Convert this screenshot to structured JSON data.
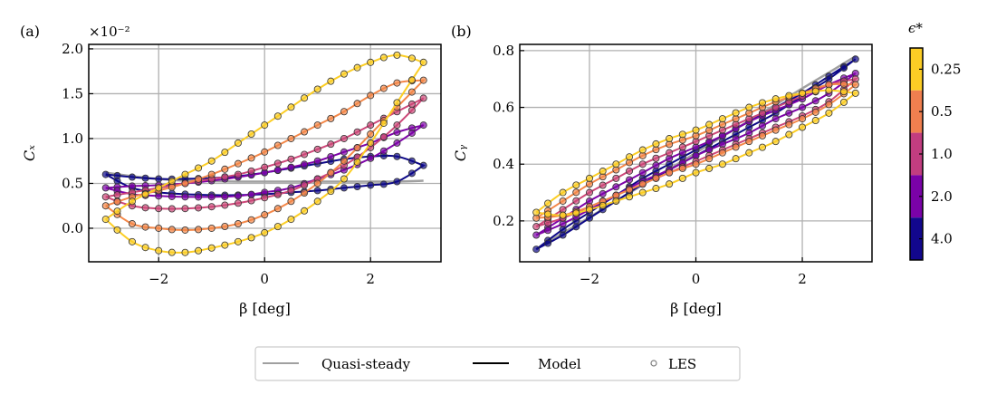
{
  "chart_data": [
    {
      "type": "line",
      "panel_label": "(a)",
      "offset_text": "×10⁻²",
      "xlabel": "β [deg]",
      "ylabel": "Cₓ",
      "xlim": [
        -3.32,
        3.33
      ],
      "ylim": [
        -0.374,
        2.05
      ],
      "xticks": [
        -2,
        0,
        2
      ],
      "xtick_labels": [
        "−2",
        "0",
        "2"
      ],
      "yticks": [
        0.0,
        0.5,
        1.0,
        1.5,
        2.0
      ],
      "ytick_labels": [
        "0.0",
        "0.5",
        "1.0",
        "1.5",
        "2.0"
      ],
      "grid": true,
      "beta": [
        -3,
        -2.5,
        -2,
        -1.5,
        -1,
        -0.5,
        0,
        0.5,
        1,
        1.5,
        2,
        2.5,
        3
      ],
      "quasi_steady": [
        0.62,
        0.58,
        0.55,
        0.53,
        0.525,
        0.52,
        0.52,
        0.52,
        0.52,
        0.52,
        0.52,
        0.52,
        0.53
      ],
      "series": [
        {
          "name": "4.0",
          "upper": [
            0.6,
            0.57,
            0.55,
            0.55,
            0.56,
            0.58,
            0.62,
            0.67,
            0.72,
            0.77,
            0.8,
            0.8,
            0.7
          ],
          "lower": [
            0.6,
            0.45,
            0.4,
            0.38,
            0.37,
            0.37,
            0.38,
            0.4,
            0.42,
            0.45,
            0.48,
            0.52,
            0.7
          ]
        },
        {
          "name": "2.0",
          "upper": [
            0.45,
            0.47,
            0.48,
            0.5,
            0.53,
            0.57,
            0.62,
            0.68,
            0.75,
            0.85,
            0.95,
            1.07,
            1.15
          ],
          "lower": [
            0.45,
            0.38,
            0.36,
            0.35,
            0.35,
            0.36,
            0.4,
            0.45,
            0.55,
            0.65,
            0.78,
            0.95,
            1.15
          ]
        },
        {
          "name": "1.0",
          "upper": [
            0.35,
            0.4,
            0.45,
            0.5,
            0.55,
            0.6,
            0.68,
            0.77,
            0.88,
            1.0,
            1.15,
            1.3,
            1.45
          ],
          "lower": [
            0.35,
            0.25,
            0.22,
            0.22,
            0.24,
            0.28,
            0.34,
            0.42,
            0.55,
            0.7,
            0.9,
            1.15,
            1.45
          ]
        },
        {
          "name": "0.5",
          "upper": [
            0.25,
            0.35,
            0.42,
            0.5,
            0.6,
            0.72,
            0.85,
            1.0,
            1.15,
            1.3,
            1.48,
            1.62,
            1.65
          ],
          "lower": [
            0.25,
            0.05,
            0.0,
            -0.02,
            0.0,
            0.05,
            0.15,
            0.3,
            0.5,
            0.75,
            1.05,
            1.35,
            1.65
          ]
        },
        {
          "name": "0.25",
          "upper": [
            0.1,
            0.3,
            0.45,
            0.6,
            0.75,
            0.95,
            1.15,
            1.35,
            1.55,
            1.72,
            1.85,
            1.93,
            1.85
          ],
          "lower": [
            0.1,
            -0.15,
            -0.25,
            -0.27,
            -0.22,
            -0.15,
            -0.05,
            0.1,
            0.3,
            0.55,
            0.95,
            1.4,
            1.85
          ]
        }
      ]
    },
    {
      "type": "line",
      "panel_label": "(b)",
      "xlabel": "β [deg]",
      "ylabel": "Cᵧ",
      "xlim": [
        -3.31,
        3.31
      ],
      "ylim": [
        0.056,
        0.822
      ],
      "xticks": [
        -2,
        0,
        2
      ],
      "xtick_labels": [
        "−2",
        "0",
        "2"
      ],
      "yticks": [
        0.2,
        0.4,
        0.6,
        0.8
      ],
      "ytick_labels": [
        "0.2",
        "0.4",
        "0.6",
        "0.8"
      ],
      "grid": true,
      "beta": [
        -3,
        -2.5,
        -2,
        -1.5,
        -1,
        -0.5,
        0,
        0.5,
        1,
        1.5,
        2,
        2.5,
        3
      ],
      "quasi_steady": [
        0.1,
        0.157,
        0.213,
        0.27,
        0.327,
        0.383,
        0.44,
        0.497,
        0.553,
        0.61,
        0.667,
        0.723,
        0.78
      ],
      "series": [
        {
          "name": "4.0",
          "upper": [
            0.1,
            0.17,
            0.23,
            0.29,
            0.35,
            0.4,
            0.45,
            0.5,
            0.55,
            0.6,
            0.65,
            0.71,
            0.77
          ],
          "lower": [
            0.1,
            0.15,
            0.21,
            0.27,
            0.33,
            0.38,
            0.43,
            0.48,
            0.53,
            0.58,
            0.64,
            0.7,
            0.77
          ]
        },
        {
          "name": "2.0",
          "upper": [
            0.15,
            0.21,
            0.27,
            0.32,
            0.37,
            0.42,
            0.46,
            0.5,
            0.55,
            0.59,
            0.63,
            0.68,
            0.72
          ],
          "lower": [
            0.15,
            0.19,
            0.24,
            0.29,
            0.34,
            0.38,
            0.43,
            0.47,
            0.51,
            0.56,
            0.6,
            0.65,
            0.72
          ]
        },
        {
          "name": "1.0",
          "upper": [
            0.18,
            0.24,
            0.3,
            0.35,
            0.4,
            0.44,
            0.48,
            0.52,
            0.56,
            0.6,
            0.64,
            0.68,
            0.7
          ],
          "lower": [
            0.18,
            0.21,
            0.25,
            0.29,
            0.33,
            0.37,
            0.41,
            0.45,
            0.49,
            0.53,
            0.57,
            0.62,
            0.7
          ]
        },
        {
          "name": "0.5",
          "upper": [
            0.21,
            0.27,
            0.33,
            0.38,
            0.43,
            0.47,
            0.5,
            0.54,
            0.58,
            0.62,
            0.65,
            0.68,
            0.68
          ],
          "lower": [
            0.21,
            0.22,
            0.25,
            0.29,
            0.33,
            0.37,
            0.4,
            0.44,
            0.48,
            0.52,
            0.56,
            0.61,
            0.68
          ]
        },
        {
          "name": "0.25",
          "upper": [
            0.23,
            0.3,
            0.35,
            0.4,
            0.45,
            0.49,
            0.52,
            0.56,
            0.6,
            0.63,
            0.65,
            0.66,
            0.65
          ],
          "lower": [
            0.23,
            0.22,
            0.24,
            0.27,
            0.3,
            0.33,
            0.37,
            0.4,
            0.44,
            0.48,
            0.53,
            0.58,
            0.65
          ]
        }
      ]
    }
  ],
  "colorbar": {
    "title": "ϵ*",
    "labels": [
      "0.25",
      "0.5",
      "1.0",
      "2.0",
      "4.0"
    ],
    "colors": [
      "#fccd25",
      "#f07f4f",
      "#c23d80",
      "#7a02a8",
      "#12078d"
    ]
  },
  "series_colors": {
    "4.0": "#0d0887",
    "2.0": "#7e03a8",
    "1.0": "#cc4778",
    "0.5": "#f48849",
    "0.25": "#fcce25"
  },
  "quasi_steady_color": "#a0a0a0",
  "legend": {
    "items": [
      {
        "label": "Quasi-steady",
        "kind": "line",
        "color": "#a0a0a0"
      },
      {
        "label": "Model",
        "kind": "line",
        "color": "#000000"
      },
      {
        "label": "LES",
        "kind": "marker",
        "color": "#808080"
      }
    ]
  }
}
